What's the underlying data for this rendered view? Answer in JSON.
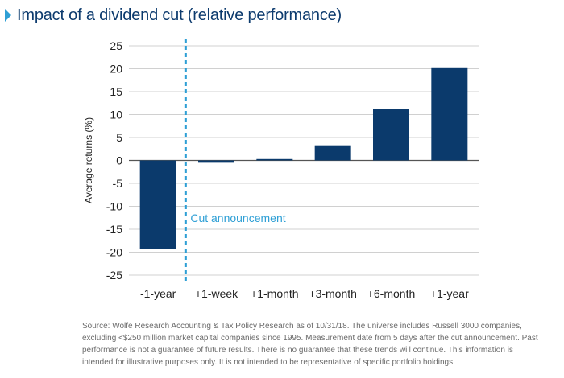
{
  "header": {
    "title": "Impact of a dividend cut (relative performance)"
  },
  "colors": {
    "bar": "#0b3a6c",
    "accent": "#2e9fd5",
    "grid": "#d0d0d0",
    "title": "#0d3b6e"
  },
  "chart_data": {
    "type": "bar",
    "title": "Impact of a dividend cut (relative performance)",
    "xlabel": "",
    "ylabel": "Average returns (%)",
    "ylim": [
      -25,
      25
    ],
    "yticks": [
      25,
      20,
      15,
      10,
      5,
      0,
      -5,
      -10,
      -15,
      -20,
      -25
    ],
    "grid": true,
    "categories": [
      "-1-year",
      "+1-week",
      "+1-month",
      "+3-month",
      "+6-month",
      "+1-year"
    ],
    "values": [
      -19.3,
      -0.5,
      0.3,
      3.3,
      11.3,
      20.3
    ],
    "annotation": {
      "text": "Cut announcement",
      "style": "dashed vertical line between -1-year and +1-week"
    }
  },
  "footnote": {
    "text": "Source: Wolfe Research Accounting & Tax Policy Research as of 10/31/18. The universe includes Russell 3000 companies, excluding <$250 million market capital companies since 1995. Measurement date from 5 days after the cut announcement. Past performance is not a guarantee of future results. There is no guarantee that these trends will continue. This information is intended for illustrative purposes only. It is not intended to be representative of specific portfolio holdings."
  }
}
